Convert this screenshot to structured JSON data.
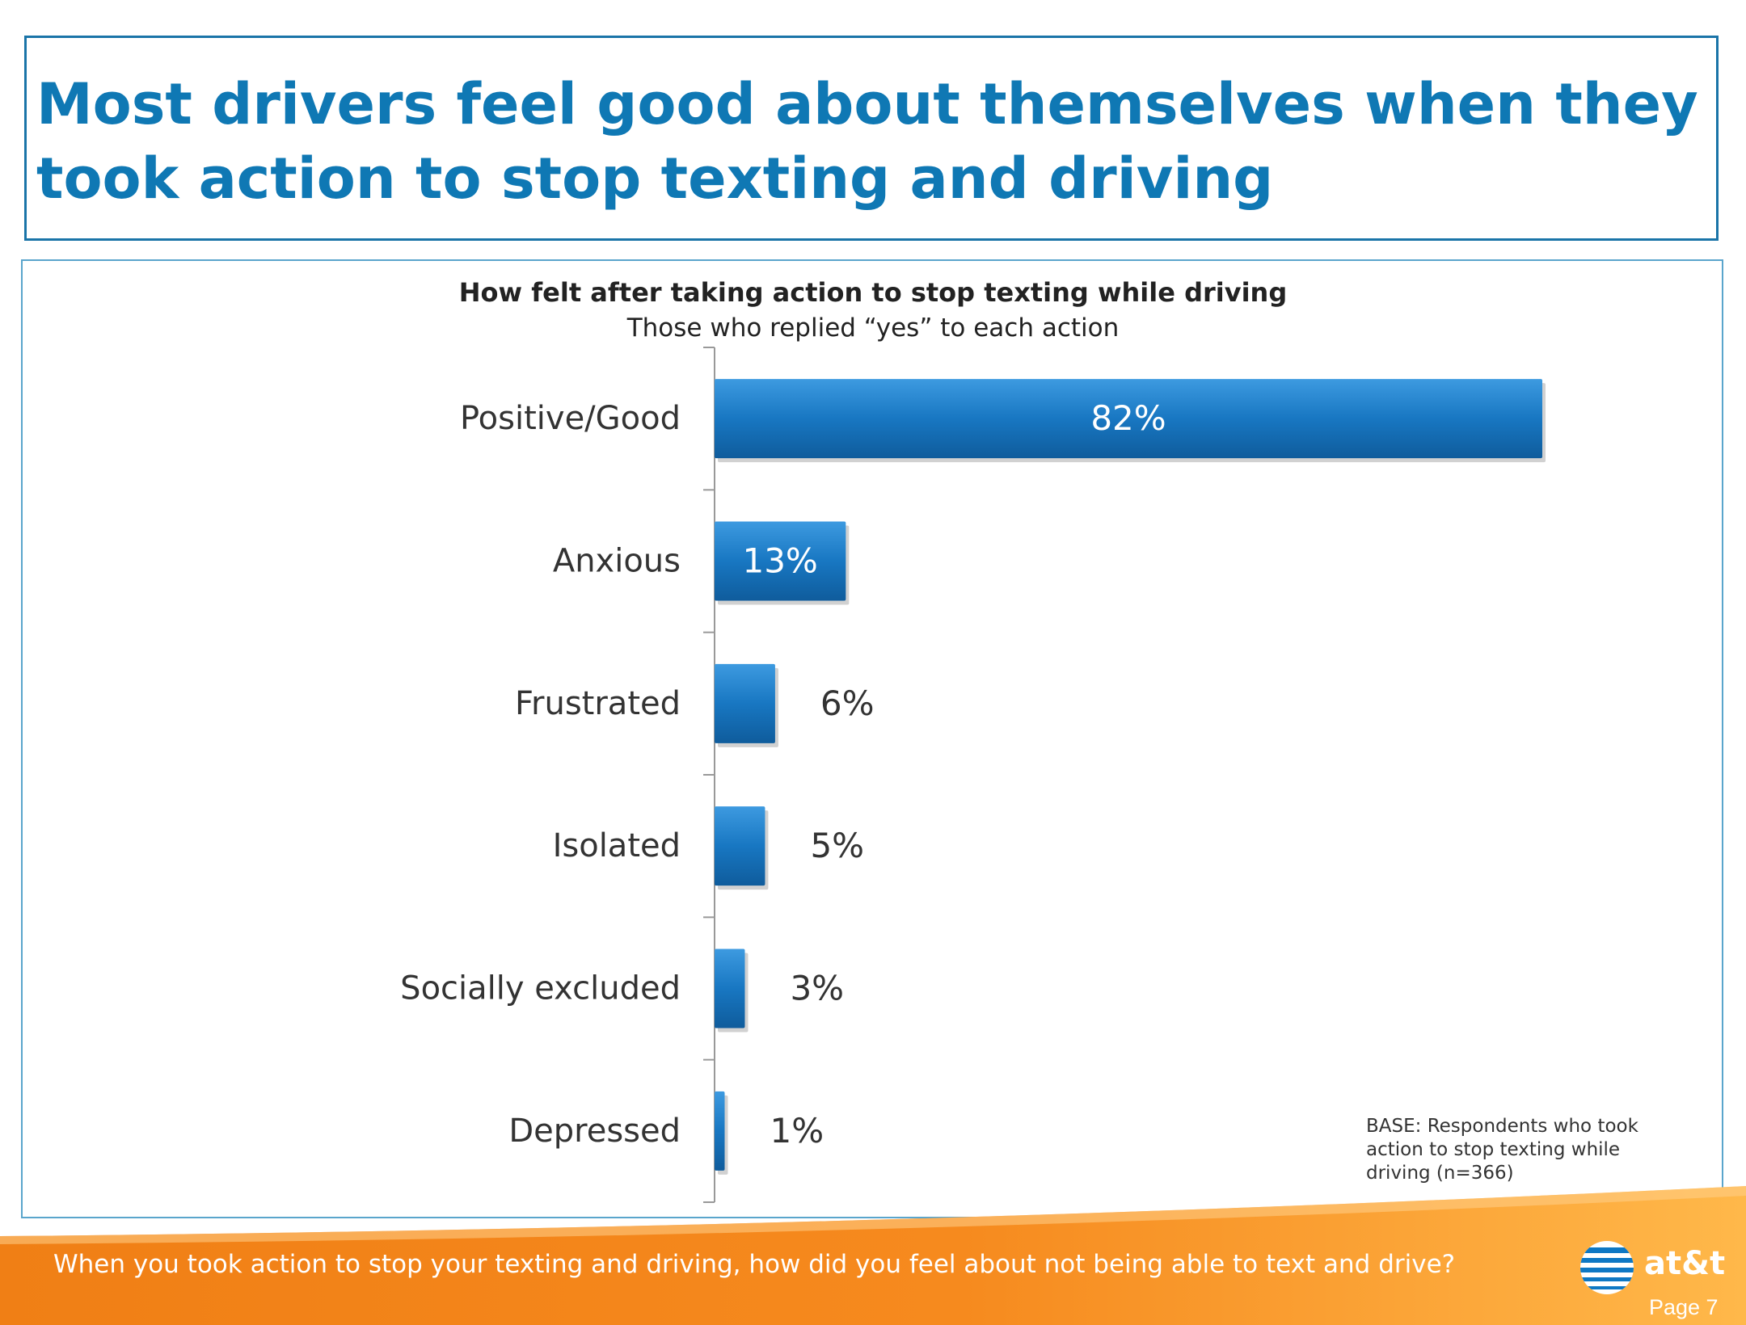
{
  "header": {
    "title": "Most drivers feel good about themselves when they took action to stop texting and driving"
  },
  "chart_data": {
    "type": "bar",
    "orientation": "horizontal",
    "title": "How felt after taking action to stop texting while driving",
    "subtitle": "Those who replied “yes” to each action",
    "categories": [
      "Positive/Good",
      "Anxious",
      "Frustrated",
      "Isolated",
      "Socially excluded",
      "Depressed"
    ],
    "values": [
      82,
      13,
      6,
      5,
      3,
      1
    ],
    "value_labels": [
      "82%",
      "13%",
      "6%",
      "5%",
      "3%",
      "1%"
    ],
    "xlim": [
      0,
      100
    ],
    "grid": false,
    "bar_color": "#1a7cc4"
  },
  "note": {
    "base": "BASE: Respondents who took action to stop texting while driving   (n=366)"
  },
  "footer": {
    "question": "When you took action to stop your texting and driving, how did you feel about not being able to text and drive?",
    "brand": "at&t",
    "page": "Page 7",
    "colors": {
      "bar_light": "#ffb84a",
      "bar_dark": "#f07f15"
    }
  }
}
